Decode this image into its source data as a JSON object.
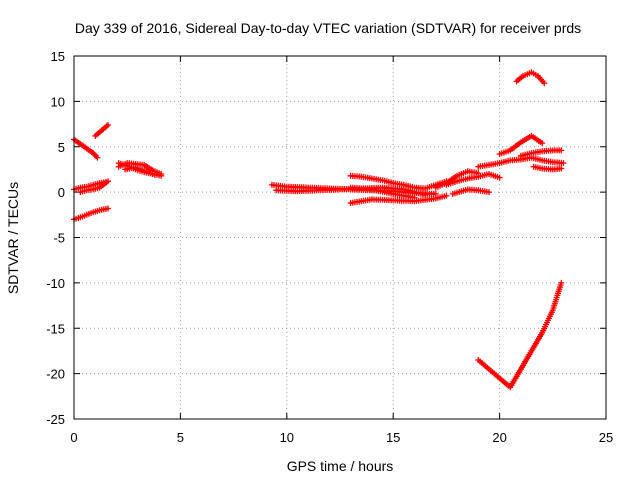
{
  "chart_data": {
    "type": "scatter",
    "title": "Day 339 of 2016, Sidereal Day-to-day VTEC variation (SDTVAR) for receiver prds",
    "xlabel": "GPS time / hours",
    "ylabel": "SDTVAR / TECUs",
    "xlim": [
      0,
      25
    ],
    "ylim": [
      -25,
      15
    ],
    "xticks": [
      "0",
      "5",
      "10",
      "15",
      "20",
      "25"
    ],
    "yticks": [
      "15",
      "10",
      "5",
      "0",
      "-5",
      "-10",
      "-15",
      "-20",
      "-25"
    ],
    "grid": true,
    "marker_color": "#ff0000",
    "segments": [
      {
        "x": [
          0.0,
          0.3,
          0.6,
          0.9,
          1.1
        ],
        "y": [
          5.8,
          5.3,
          4.8,
          4.3,
          3.8
        ]
      },
      {
        "x": [
          0.0,
          0.4,
          0.8,
          1.2,
          1.6
        ],
        "y": [
          -3.0,
          -2.7,
          -2.3,
          -2.0,
          -1.8
        ]
      },
      {
        "x": [
          0.0,
          0.3,
          0.6,
          0.9,
          1.2,
          1.5
        ],
        "y": [
          0.3,
          0.5,
          0.6,
          0.8,
          1.0,
          1.1
        ]
      },
      {
        "x": [
          0.3,
          0.6,
          0.9,
          1.2,
          1.6
        ],
        "y": [
          0.0,
          0.2,
          0.3,
          0.5,
          1.2
        ]
      },
      {
        "x": [
          1.0,
          1.3,
          1.6
        ],
        "y": [
          6.2,
          6.8,
          7.4
        ]
      },
      {
        "x": [
          2.1,
          2.5,
          2.9,
          3.3,
          3.7,
          4.1
        ],
        "y": [
          2.8,
          3.2,
          3.1,
          3.0,
          2.4,
          2.0
        ]
      },
      {
        "x": [
          2.1,
          2.5,
          2.9,
          3.3,
          3.7,
          4.1
        ],
        "y": [
          3.2,
          2.9,
          2.5,
          2.2,
          2.0,
          1.8
        ]
      },
      {
        "x": [
          2.4,
          2.9,
          3.4,
          3.8
        ],
        "y": [
          2.5,
          2.7,
          2.3,
          1.9
        ]
      },
      {
        "x": [
          9.3,
          10.0,
          11.0,
          12.0,
          13.0,
          14.0,
          15.0,
          16.0,
          17.0
        ],
        "y": [
          0.8,
          0.6,
          0.5,
          0.4,
          0.3,
          0.2,
          0.1,
          -0.1,
          -0.2
        ]
      },
      {
        "x": [
          9.5,
          10.5,
          11.5,
          12.5,
          13.5,
          14.5,
          15.5,
          16.5
        ],
        "y": [
          0.2,
          0.1,
          0.2,
          0.3,
          0.4,
          0.5,
          0.3,
          -0.3
        ]
      },
      {
        "x": [
          13.0,
          13.5,
          14.0,
          14.5,
          15.0,
          15.5,
          16.0,
          16.5,
          17.0,
          17.5
        ],
        "y": [
          1.8,
          1.7,
          1.5,
          1.3,
          1.0,
          0.8,
          0.5,
          0.4,
          0.8,
          1.2
        ]
      },
      {
        "x": [
          13.0,
          14.0,
          15.0,
          16.0,
          17.0,
          17.5
        ],
        "y": [
          -1.2,
          -0.8,
          -0.9,
          -1.0,
          -0.7,
          -0.4
        ]
      },
      {
        "x": [
          13.0,
          14.0,
          15.0,
          16.0
        ],
        "y": [
          0.5,
          0.3,
          -0.2,
          -0.6
        ]
      },
      {
        "x": [
          17.0,
          17.5,
          18.0,
          18.5,
          19.0
        ],
        "y": [
          0.5,
          1.0,
          1.8,
          2.3,
          2.1
        ]
      },
      {
        "x": [
          17.5,
          18.0,
          18.5,
          19.0,
          19.5,
          20.0
        ],
        "y": [
          0.8,
          1.2,
          1.5,
          1.7,
          2.0,
          1.6
        ]
      },
      {
        "x": [
          17.8,
          18.5,
          19.0,
          19.5
        ],
        "y": [
          -0.2,
          0.3,
          0.2,
          0.0
        ]
      },
      {
        "x": [
          19.0,
          19.5,
          20.0,
          20.5,
          21.0,
          21.5,
          22.0,
          22.5,
          23.0
        ],
        "y": [
          2.8,
          3.0,
          3.2,
          3.5,
          3.6,
          3.8,
          3.5,
          3.3,
          3.2
        ]
      },
      {
        "x": [
          20.0,
          20.5,
          21.0,
          21.5,
          22.0
        ],
        "y": [
          4.2,
          4.6,
          5.5,
          6.2,
          5.4
        ]
      },
      {
        "x": [
          21.0,
          21.5,
          22.0,
          22.5,
          22.9
        ],
        "y": [
          4.0,
          4.3,
          4.5,
          4.6,
          4.6
        ]
      },
      {
        "x": [
          21.6,
          22.0,
          22.5,
          22.9
        ],
        "y": [
          2.8,
          2.6,
          2.5,
          2.6
        ]
      },
      {
        "x": [
          20.8,
          21.1,
          21.5,
          21.8,
          22.1
        ],
        "y": [
          12.2,
          12.8,
          13.2,
          12.8,
          12.0
        ]
      },
      {
        "x": [
          19.0,
          19.5,
          20.0,
          20.5,
          21.0,
          21.5,
          22.0,
          22.5,
          22.9
        ],
        "y": [
          -18.5,
          -19.5,
          -20.5,
          -21.5,
          -19.5,
          -17.5,
          -15.5,
          -13.0,
          -10.0
        ]
      }
    ]
  }
}
